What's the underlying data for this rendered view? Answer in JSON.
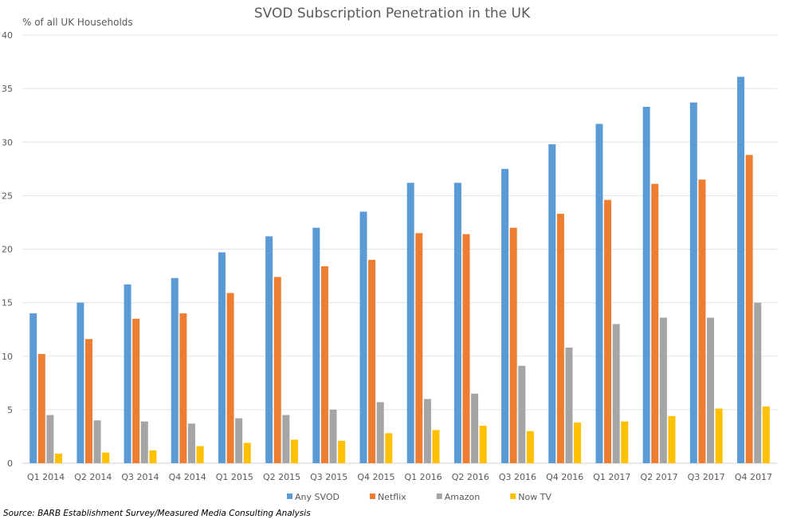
{
  "chart_data": {
    "type": "bar",
    "title": "SVOD Subscription Penetration in the UK",
    "ylabel": "% of all UK Households",
    "xlabel": "",
    "ylim": [
      0,
      40
    ],
    "yticks": [
      0,
      5,
      10,
      15,
      20,
      25,
      30,
      35,
      40
    ],
    "grid": true,
    "legend_position": "bottom",
    "categories": [
      "Q1 2014",
      "Q2 2014",
      "Q3 2014",
      "Q4 2014",
      "Q1 2015",
      "Q2 2015",
      "Q3 2015",
      "Q4 2015",
      "Q1 2016",
      "Q2 2016",
      "Q3 2016",
      "Q4 2016",
      "Q1 2017",
      "Q2 2017",
      "Q3 2017",
      "Q4 2017"
    ],
    "series": [
      {
        "name": "Any SVOD",
        "color": "#5B9BD5",
        "values": [
          14.0,
          15.0,
          16.7,
          17.3,
          19.7,
          21.2,
          22.0,
          23.5,
          26.2,
          26.2,
          27.5,
          29.8,
          31.7,
          33.3,
          33.7,
          36.1
        ]
      },
      {
        "name": "Netflix",
        "color": "#ED7D31",
        "values": [
          10.2,
          11.6,
          13.5,
          14.0,
          15.9,
          17.4,
          18.4,
          19.0,
          21.5,
          21.4,
          22.0,
          23.3,
          24.6,
          26.1,
          26.5,
          28.8
        ]
      },
      {
        "name": "Amazon",
        "color": "#A5A5A5",
        "values": [
          4.5,
          4.0,
          3.9,
          3.7,
          4.2,
          4.5,
          5.0,
          5.7,
          6.0,
          6.5,
          9.1,
          10.8,
          13.0,
          13.6,
          13.6,
          15.0
        ]
      },
      {
        "name": "Now TV",
        "color": "#FFC000",
        "values": [
          0.9,
          1.0,
          1.2,
          1.6,
          1.9,
          2.2,
          2.1,
          2.8,
          3.1,
          3.5,
          3.0,
          3.8,
          3.9,
          4.4,
          5.1,
          5.3
        ]
      }
    ],
    "source": "Source: BARB Establishment Survey/Measured Media Consulting Analysis"
  }
}
